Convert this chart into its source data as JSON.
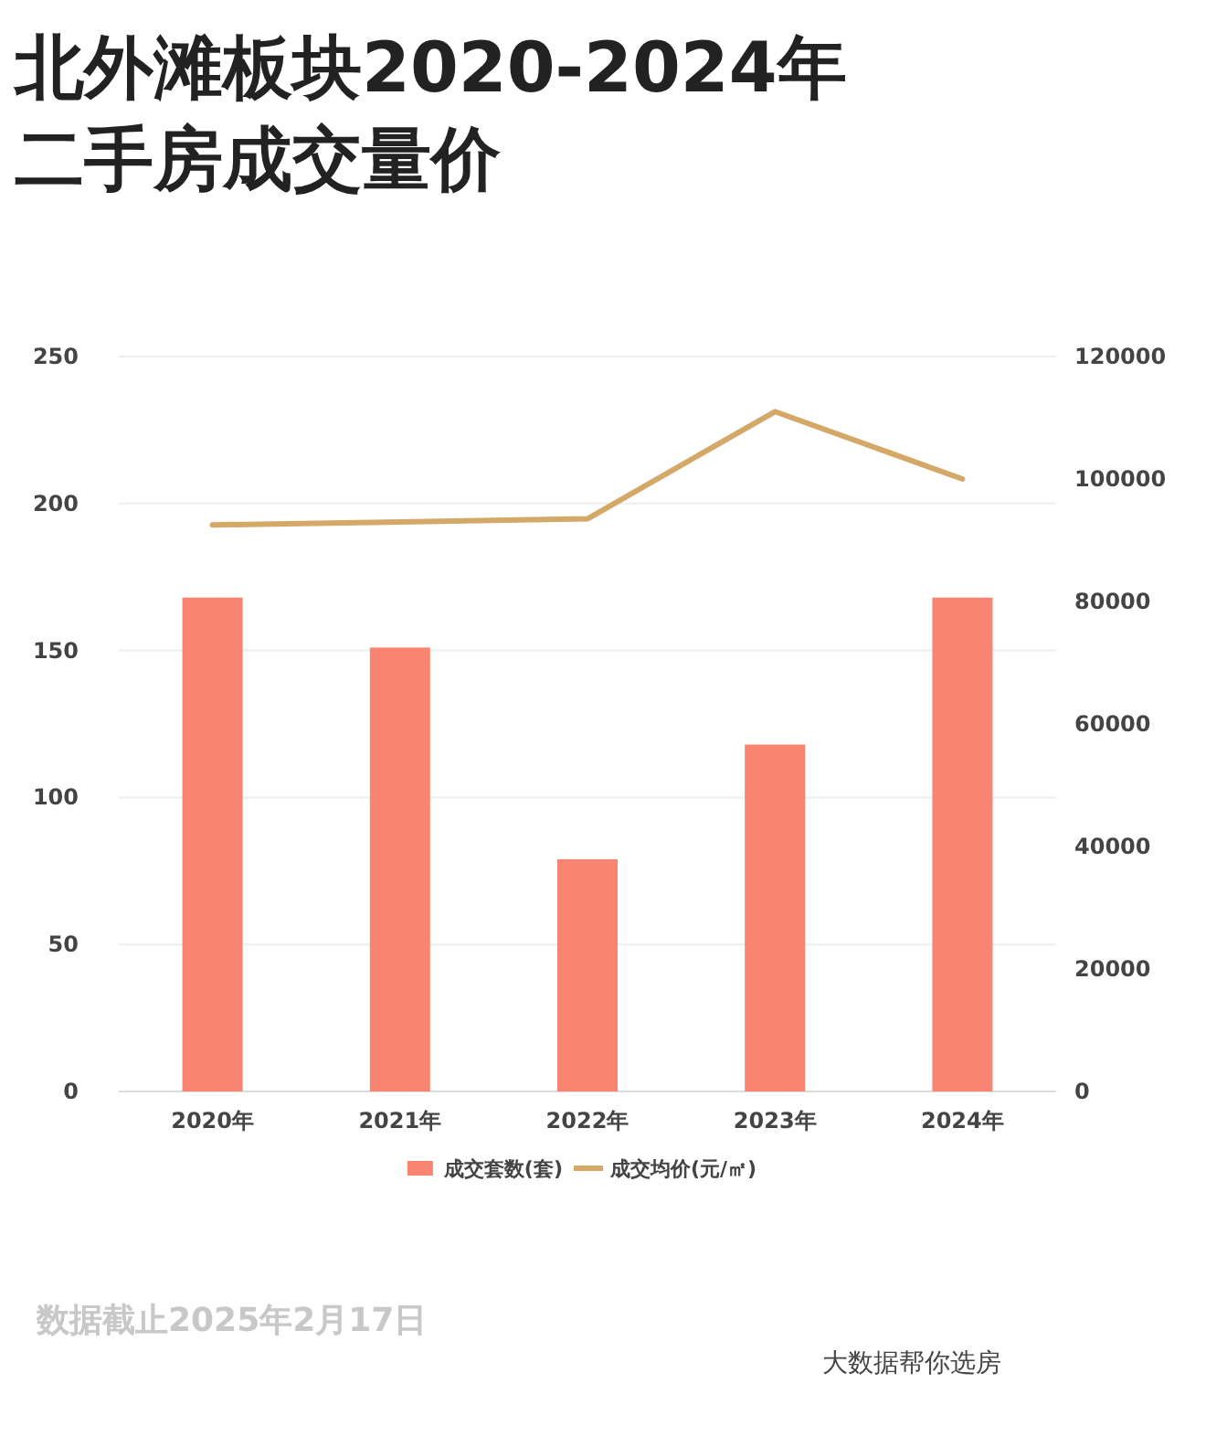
{
  "chart_data": {
    "type": "bar",
    "title": "北外滩板块2020-2024年二手房成交量价",
    "categories": [
      "2020年",
      "2021年",
      "2022年",
      "2023年",
      "2024年"
    ],
    "series": [
      {
        "name": "成交套数(套)",
        "color": "#f98472",
        "values": [
          168,
          151,
          79,
          118,
          168
        ]
      },
      {
        "name": "成交均价(元/㎡)",
        "type": "line",
        "axis": "y2",
        "color": "#d4a968",
        "values": [
          92500,
          93000,
          93500,
          111000,
          100000
        ]
      }
    ],
    "ylim": [
      0,
      250
    ],
    "yticks": [
      0,
      50,
      100,
      150,
      200,
      250
    ],
    "y2lim": [
      0,
      120000
    ],
    "y2ticks": [
      0,
      20000,
      40000,
      60000,
      80000,
      100000,
      120000
    ],
    "grid": "y",
    "legend": "bottom",
    "annotations": [
      "数据截止2025年2月17日",
      "大数据帮你选房"
    ]
  }
}
